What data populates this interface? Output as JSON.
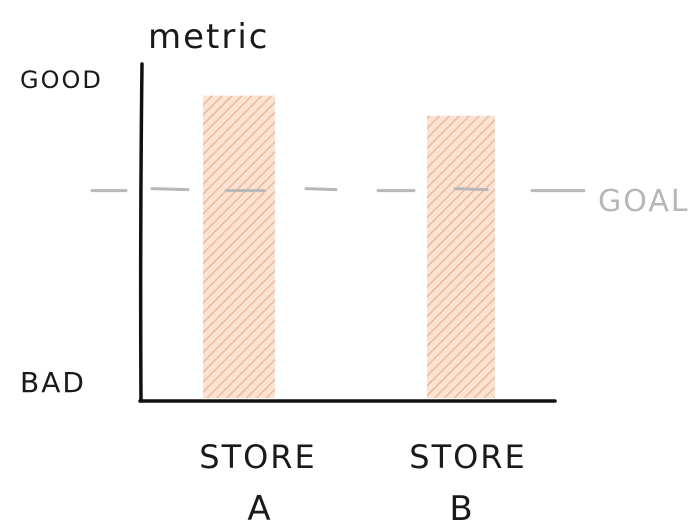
{
  "chart_data": {
    "type": "bar",
    "title": "",
    "ylabel": "metric",
    "xlabel": "",
    "y_top_label": "GOOD",
    "y_bottom_label": "BAD",
    "categories": [
      {
        "line1": "STORE",
        "line2": "A"
      },
      {
        "line1": "STORE",
        "line2": "B"
      }
    ],
    "values": [
      0.9,
      0.84
    ],
    "ylim": [
      0,
      1
    ],
    "goal": {
      "label": "GOAL",
      "value": 0.62
    },
    "grid": false,
    "legend": "none",
    "colors": {
      "bar_fill": "#fbe3d4",
      "bar_hatch": "#eeb89a",
      "axis": "#111111",
      "goal_line": "#b8b8b8"
    }
  }
}
